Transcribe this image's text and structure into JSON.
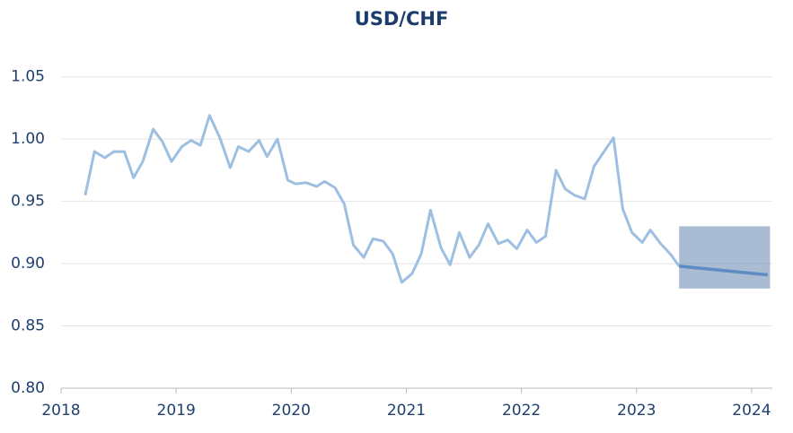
{
  "chart_data": {
    "type": "line",
    "title": "USD/CHF",
    "xlim": [
      2018,
      2024.18
    ],
    "xticks": [
      2018,
      2019,
      2020,
      2021,
      2022,
      2023,
      2024
    ],
    "ylim": [
      0.8,
      1.075
    ],
    "yticks": [
      {
        "value": 0.8,
        "label": "0.80"
      },
      {
        "value": 0.85,
        "label": "0.85"
      },
      {
        "value": 0.9,
        "label": "0.90"
      },
      {
        "value": 0.95,
        "label": "0.95"
      },
      {
        "value": 1.0,
        "label": "1.00"
      },
      {
        "value": 1.05,
        "label": "1.05"
      }
    ],
    "grid": true,
    "series": [
      {
        "color": "#9dbfe2",
        "x": [
          2018.21,
          2018.29,
          2018.38,
          2018.46,
          2018.55,
          2018.63,
          2018.71,
          2018.8,
          2018.88,
          2018.96,
          2019.05,
          2019.13,
          2019.21,
          2019.29,
          2019.38,
          2019.47,
          2019.54,
          2019.63,
          2019.72,
          2019.79,
          2019.88,
          2019.97,
          2020.04,
          2020.13,
          2020.22,
          2020.29,
          2020.38,
          2020.46,
          2020.54,
          2020.63,
          2020.71,
          2020.8,
          2020.88,
          2020.96,
          2021.05,
          2021.13,
          2021.21,
          2021.3,
          2021.38,
          2021.46,
          2021.55,
          2021.63,
          2021.71,
          2021.8,
          2021.88,
          2021.96,
          2022.05,
          2022.13,
          2022.21,
          2022.3,
          2022.38,
          2022.46,
          2022.55,
          2022.63,
          2022.71,
          2022.8,
          2022.88,
          2022.96,
          2023.05,
          2023.12,
          2023.21,
          2023.3,
          2023.37
        ],
        "values": [
          0.955,
          0.99,
          0.985,
          0.99,
          0.99,
          0.969,
          0.982,
          1.008,
          0.998,
          0.982,
          0.994,
          0.999,
          0.995,
          1.019,
          1.001,
          0.977,
          0.994,
          0.99,
          0.999,
          0.986,
          1.0,
          0.967,
          0.964,
          0.965,
          0.962,
          0.966,
          0.961,
          0.948,
          0.915,
          0.905,
          0.92,
          0.918,
          0.908,
          0.885,
          0.892,
          0.908,
          0.943,
          0.913,
          0.899,
          0.925,
          0.905,
          0.915,
          0.932,
          0.916,
          0.919,
          0.912,
          0.927,
          0.917,
          0.922,
          0.975,
          0.96,
          0.955,
          0.952,
          0.978,
          0.989,
          1.001,
          0.944,
          0.925,
          0.917,
          0.927,
          0.916,
          0.907,
          0.898
        ]
      },
      {
        "color": "#5f8bc4",
        "x": [
          2023.37,
          2024.14
        ],
        "values": [
          0.898,
          0.891
        ]
      }
    ],
    "band": {
      "color": "#6f8fb5",
      "x": [
        2023.37,
        2024.16
      ],
      "values": [
        0.88,
        0.93
      ]
    }
  }
}
